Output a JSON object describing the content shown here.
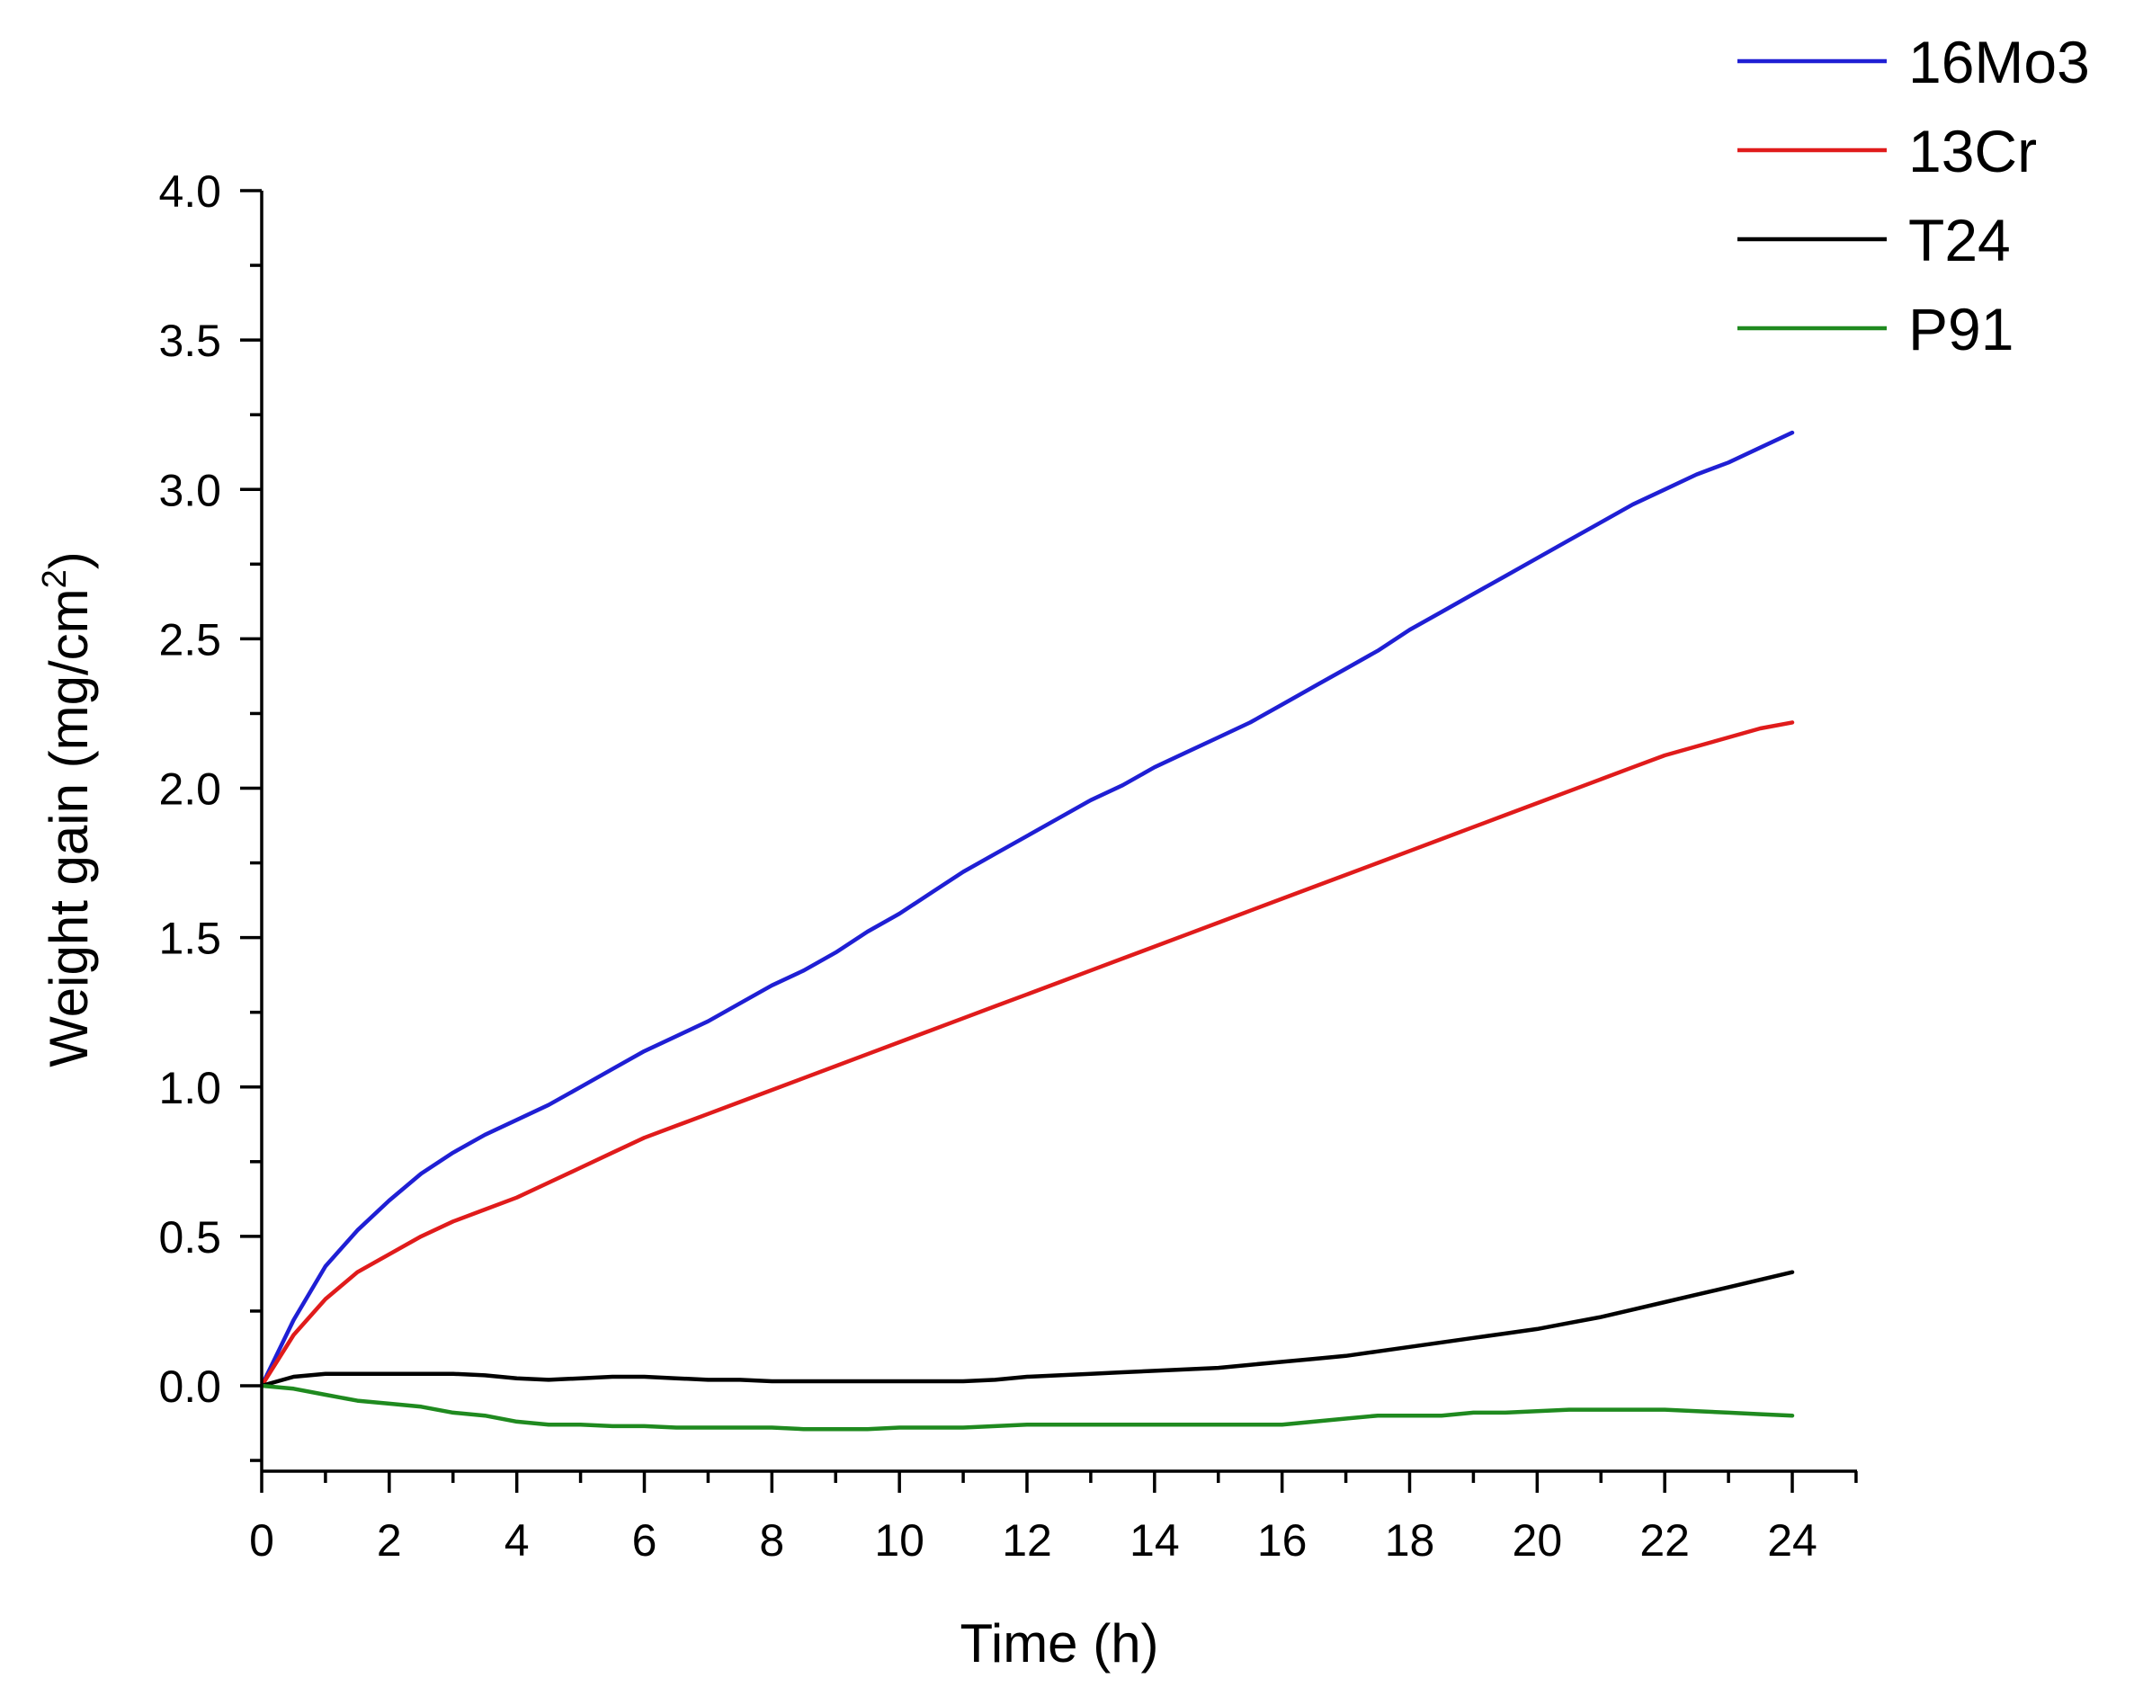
{
  "chart_data": {
    "type": "line",
    "title": "",
    "xlabel": "Time (h)",
    "ylabel_main": "Weight gain (mg/cm",
    "ylabel_sup": "2",
    "ylabel_end": ")",
    "xlim": [
      0,
      25
    ],
    "ylim": [
      -0.3,
      4.0
    ],
    "x_major_ticks": [
      0,
      2,
      4,
      6,
      8,
      10,
      12,
      14,
      16,
      18,
      20,
      22,
      24
    ],
    "x_tick_labels": [
      "0",
      "2",
      "4",
      "6",
      "8",
      "10",
      "12",
      "14",
      "16",
      "18",
      "20",
      "22",
      "24"
    ],
    "y_major_ticks": [
      0.0,
      0.5,
      1.0,
      1.5,
      2.0,
      2.5,
      3.0,
      3.5,
      4.0
    ],
    "y_tick_labels": [
      "0.0",
      "0.5",
      "1.0",
      "1.5",
      "2.0",
      "2.5",
      "3.0",
      "3.5",
      "4.0"
    ],
    "grid": false,
    "legend_position": "top-right",
    "x": [
      0,
      0.5,
      1,
      1.5,
      2,
      2.5,
      3,
      3.5,
      4,
      4.5,
      5,
      5.5,
      6,
      6.5,
      7,
      7.5,
      8,
      8.5,
      9,
      9.5,
      10,
      10.5,
      11,
      11.5,
      12,
      12.5,
      13,
      13.5,
      14,
      14.5,
      15,
      15.5,
      16,
      16.5,
      17,
      17.5,
      18,
      18.5,
      19,
      19.5,
      20,
      20.5,
      21,
      21.5,
      22,
      22.5,
      23,
      23.5,
      24
    ],
    "series": [
      {
        "name": "16Mo3",
        "color": "#1f1fd4",
        "values": [
          0.0,
          0.22,
          0.4,
          0.52,
          0.62,
          0.71,
          0.78,
          0.84,
          0.89,
          0.94,
          1.0,
          1.06,
          1.12,
          1.17,
          1.22,
          1.28,
          1.34,
          1.39,
          1.45,
          1.52,
          1.58,
          1.65,
          1.72,
          1.78,
          1.84,
          1.9,
          1.96,
          2.01,
          2.07,
          2.12,
          2.17,
          2.22,
          2.28,
          2.34,
          2.4,
          2.46,
          2.53,
          2.59,
          2.65,
          2.71,
          2.77,
          2.83,
          2.89,
          2.95,
          3.0,
          3.05,
          3.09,
          3.14,
          3.19
        ]
      },
      {
        "name": "13Cr",
        "color": "#e01b1b",
        "values": [
          0.0,
          0.17,
          0.29,
          0.38,
          0.44,
          0.5,
          0.55,
          0.59,
          0.63,
          0.68,
          0.73,
          0.78,
          0.83,
          0.87,
          0.91,
          0.95,
          0.99,
          1.03,
          1.07,
          1.11,
          1.15,
          1.19,
          1.23,
          1.27,
          1.31,
          1.35,
          1.39,
          1.43,
          1.47,
          1.51,
          1.55,
          1.59,
          1.63,
          1.67,
          1.71,
          1.75,
          1.79,
          1.83,
          1.87,
          1.91,
          1.95,
          1.99,
          2.03,
          2.07,
          2.11,
          2.14,
          2.17,
          2.2,
          2.22
        ]
      },
      {
        "name": "T24",
        "color": "#000000",
        "values": [
          0.0,
          0.03,
          0.04,
          0.04,
          0.04,
          0.04,
          0.04,
          0.035,
          0.025,
          0.02,
          0.025,
          0.03,
          0.03,
          0.025,
          0.02,
          0.02,
          0.015,
          0.015,
          0.015,
          0.015,
          0.015,
          0.015,
          0.015,
          0.02,
          0.03,
          0.035,
          0.04,
          0.045,
          0.05,
          0.055,
          0.06,
          0.07,
          0.08,
          0.09,
          0.1,
          0.115,
          0.13,
          0.145,
          0.16,
          0.175,
          0.19,
          0.21,
          0.23,
          0.255,
          0.28,
          0.305,
          0.33,
          0.355,
          0.38
        ]
      },
      {
        "name": "P91",
        "color": "#1f8a1f",
        "values": [
          0.0,
          -0.01,
          -0.03,
          -0.05,
          -0.06,
          -0.07,
          -0.09,
          -0.1,
          -0.12,
          -0.13,
          -0.13,
          -0.135,
          -0.135,
          -0.14,
          -0.14,
          -0.14,
          -0.14,
          -0.145,
          -0.145,
          -0.145,
          -0.14,
          -0.14,
          -0.14,
          -0.135,
          -0.13,
          -0.13,
          -0.13,
          -0.13,
          -0.13,
          -0.13,
          -0.13,
          -0.13,
          -0.13,
          -0.12,
          -0.11,
          -0.1,
          -0.1,
          -0.1,
          -0.09,
          -0.09,
          -0.085,
          -0.08,
          -0.08,
          -0.08,
          -0.08,
          -0.085,
          -0.09,
          -0.095,
          -0.1
        ]
      }
    ]
  }
}
